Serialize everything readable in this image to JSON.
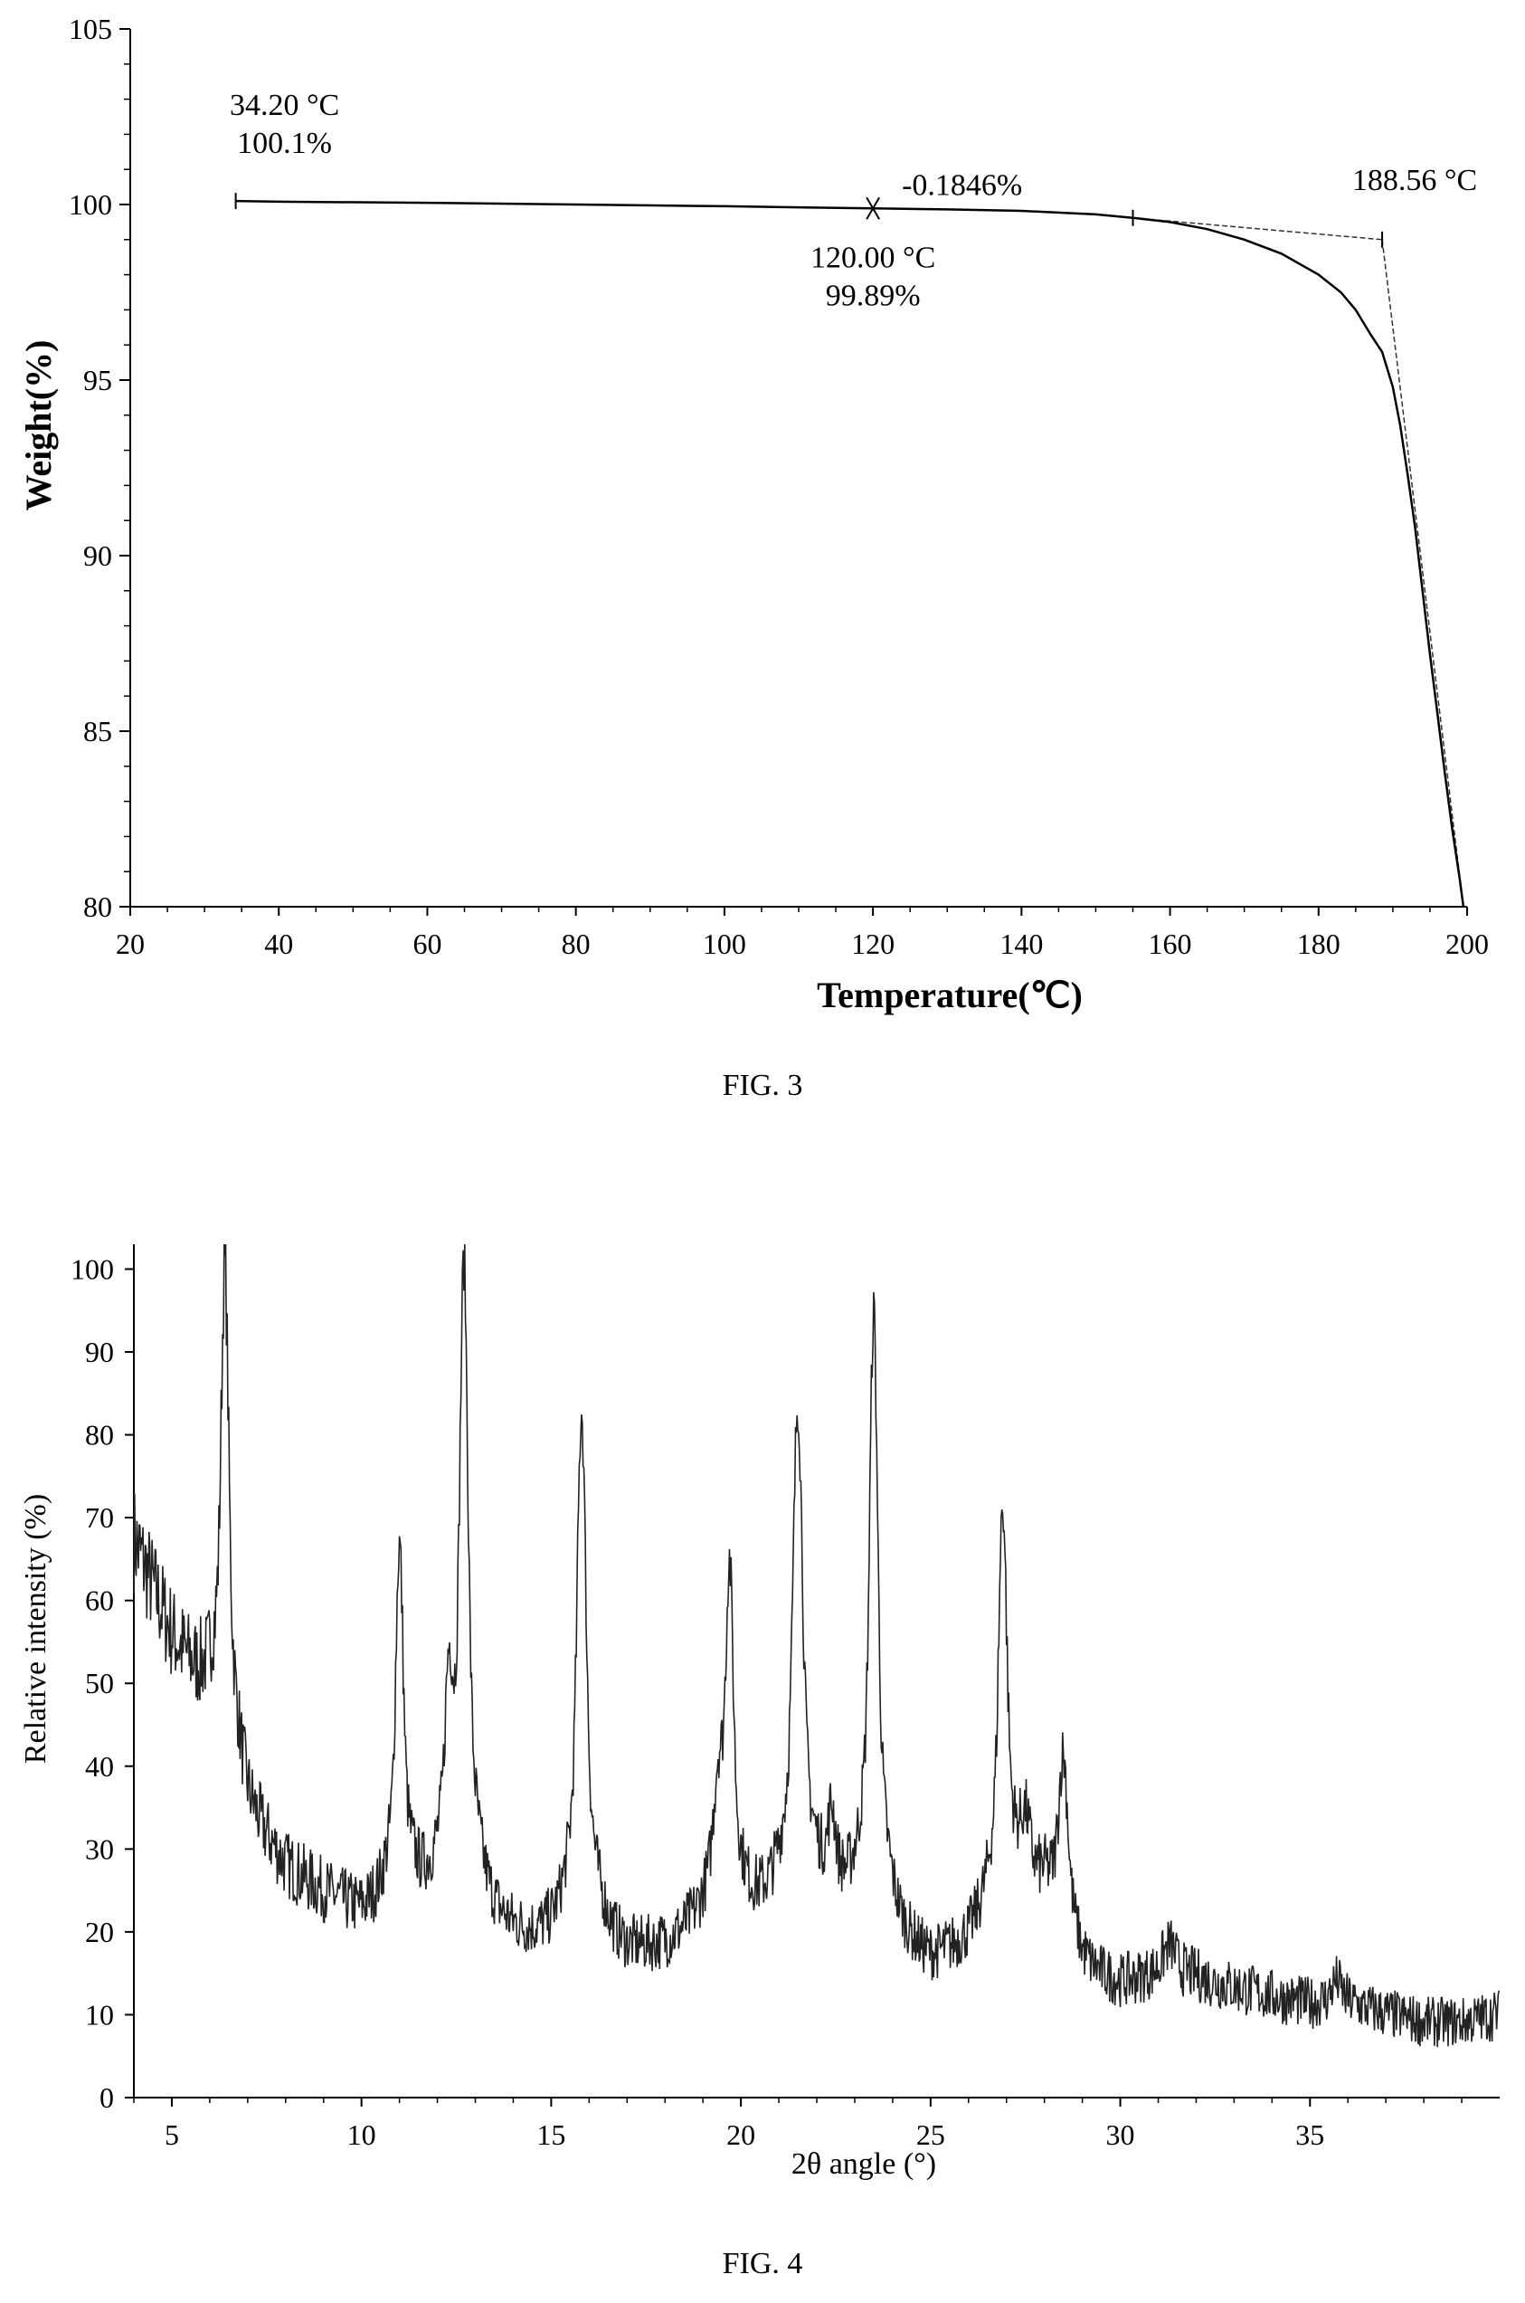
{
  "chart_data": [
    {
      "type": "line",
      "caption": "FIG. 3",
      "xlabel": "Temperature(℃)",
      "ylabel": "Weight(%)",
      "xlim": [
        20,
        200
      ],
      "ylim": [
        80,
        105
      ],
      "xticks": [
        20,
        40,
        60,
        80,
        100,
        120,
        140,
        160,
        180,
        200
      ],
      "yticks": [
        80,
        85,
        90,
        95,
        100,
        105
      ],
      "grid": false,
      "series": [
        {
          "x": [
            34.2,
            40,
            60,
            80,
            100,
            120,
            130,
            140,
            150,
            155,
            160,
            165,
            170,
            175,
            180,
            183,
            185,
            187,
            188.56,
            190,
            191,
            192,
            193,
            194,
            195,
            196,
            197,
            198,
            199,
            199.5
          ],
          "y": [
            100.1,
            100.08,
            100.05,
            100.0,
            99.95,
            99.89,
            99.86,
            99.82,
            99.72,
            99.62,
            99.5,
            99.3,
            99.0,
            98.6,
            98.0,
            97.5,
            97.0,
            96.3,
            95.8,
            94.8,
            93.7,
            92.3,
            90.8,
            89.0,
            87.2,
            85.5,
            83.8,
            82.2,
            80.8,
            80.0
          ]
        }
      ],
      "annotations": [
        {
          "lines": [
            "34.20 °C",
            "100.1%"
          ],
          "x": 34.2,
          "y": 100.1
        },
        {
          "lines": [
            "-0.1846%"
          ],
          "x": 120,
          "y": 99.89
        },
        {
          "lines": [
            "120.00 °C",
            "99.89%"
          ],
          "x": 120,
          "y": 99.89
        },
        {
          "lines": [
            "188.56 °C"
          ],
          "x": 188.56,
          "y": 99.0
        }
      ],
      "extrapolation_lines": [
        {
          "x": [
            155,
            188.56
          ],
          "y": [
            99.62,
            99.0
          ]
        },
        {
          "x": [
            188.56,
            199.5
          ],
          "y": [
            99.0,
            80.0
          ]
        }
      ]
    },
    {
      "type": "line",
      "caption": "FIG. 4",
      "xlabel": "2θ angle (°)",
      "ylabel": "Relative intensity (%)",
      "xlim": [
        4,
        40
      ],
      "ylim": [
        0,
        103
      ],
      "xticks": [
        5,
        10,
        15,
        20,
        25,
        30,
        35
      ],
      "yticks": [
        0,
        10,
        20,
        30,
        40,
        50,
        60,
        70,
        80,
        90,
        100
      ],
      "grid": false,
      "baseline": [
        [
          4,
          67
        ],
        [
          5,
          55
        ],
        [
          6,
          46
        ],
        [
          6.6,
          38
        ],
        [
          7,
          33
        ],
        [
          8,
          27
        ],
        [
          9,
          24
        ],
        [
          10,
          21
        ],
        [
          11,
          21
        ],
        [
          12,
          21
        ],
        [
          13,
          19
        ],
        [
          14,
          18
        ],
        [
          15,
          17
        ],
        [
          16,
          17
        ],
        [
          17,
          16
        ],
        [
          18,
          17
        ],
        [
          19,
          19
        ],
        [
          20,
          19
        ],
        [
          21,
          20
        ],
        [
          22,
          20
        ],
        [
          23,
          19
        ],
        [
          24,
          17
        ],
        [
          25,
          15
        ],
        [
          26,
          17
        ],
        [
          27,
          21
        ],
        [
          28,
          22
        ],
        [
          29,
          14
        ],
        [
          30,
          13
        ],
        [
          31,
          14
        ],
        [
          32,
          14
        ],
        [
          33,
          13
        ],
        [
          34,
          12
        ],
        [
          35,
          11
        ],
        [
          36,
          11
        ],
        [
          37,
          10
        ],
        [
          38,
          9
        ],
        [
          39,
          9
        ],
        [
          40,
          10
        ]
      ],
      "peaks": [
        {
          "x": 6.4,
          "height": 100,
          "width": 0.12
        },
        {
          "x": 11.0,
          "height": 65,
          "width": 0.12
        },
        {
          "x": 12.3,
          "height": 41,
          "width": 0.12
        },
        {
          "x": 12.7,
          "height": 97,
          "width": 0.13
        },
        {
          "x": 15.8,
          "height": 82,
          "width": 0.14
        },
        {
          "x": 19.4,
          "height": 32,
          "width": 0.15
        },
        {
          "x": 19.7,
          "height": 60,
          "width": 0.12
        },
        {
          "x": 21.5,
          "height": 82,
          "width": 0.15
        },
        {
          "x": 22.4,
          "height": 29,
          "width": 0.12
        },
        {
          "x": 23.5,
          "height": 93,
          "width": 0.13
        },
        {
          "x": 26.9,
          "height": 70,
          "width": 0.13
        },
        {
          "x": 27.5,
          "height": 29,
          "width": 0.15
        },
        {
          "x": 28.5,
          "height": 40,
          "width": 0.15
        },
        {
          "x": 31.3,
          "height": 18,
          "width": 0.2
        },
        {
          "x": 35.7,
          "height": 14,
          "width": 0.15
        }
      ],
      "noise_amplitude": 2.5
    }
  ]
}
